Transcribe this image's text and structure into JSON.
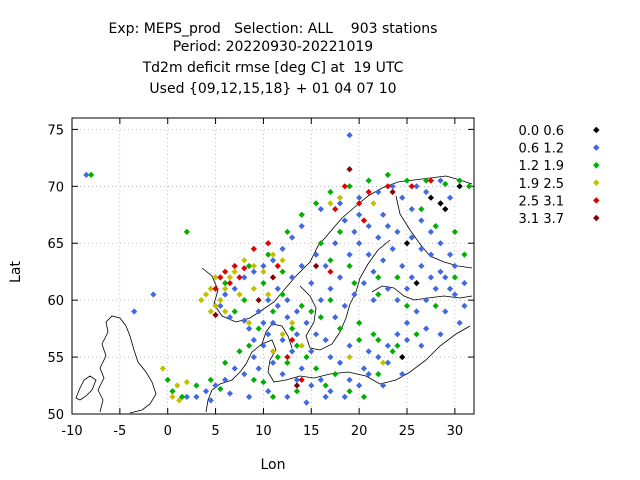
{
  "title_lines": [
    "Exp: MEPS_prod   Selection: ALL    903 stations",
    "Period: 20220930-20221019",
    "Td2m deficit rmse [deg C] at  19 UTC",
    "Used {09,12,15,18} + 01 04 07 10"
  ],
  "chart_data": {
    "type": "scatter",
    "title": "Exp: MEPS_prod   Selection: ALL    903 stations | Period: 20220930-20221019 | Td2m deficit rmse [deg C] at  19 UTC | Used {09,12,15,18} + 01 04 07 10",
    "xlabel": "Lon",
    "ylabel": "Lat",
    "xlim": [
      -10,
      32
    ],
    "ylim": [
      50,
      76
    ],
    "xticks": [
      -10,
      -5,
      0,
      5,
      10,
      15,
      20,
      25,
      30
    ],
    "yticks": [
      50,
      55,
      60,
      65,
      70,
      75
    ],
    "grid": true,
    "legend_position": "right",
    "legend": [
      {
        "label": "0.0 0.6",
        "color": "#000000"
      },
      {
        "label": "0.6 1.2",
        "color": "#4169e1"
      },
      {
        "label": "1.2 1.9",
        "color": "#00b000"
      },
      {
        "label": "1.9 2.5",
        "color": "#c0c000"
      },
      {
        "label": "2.5 3.1",
        "color": "#e00000"
      },
      {
        "label": "3.1 3.7",
        "color": "#8b0000"
      }
    ],
    "series": [
      {
        "name": "0.0 0.6",
        "points": [
          [
            27.5,
            69.0
          ],
          [
            29.0,
            68.0
          ],
          [
            26.0,
            61.5
          ],
          [
            24.5,
            55.0
          ],
          [
            25.0,
            65.0
          ],
          [
            30.5,
            70.0
          ],
          [
            28.5,
            68.5
          ]
        ]
      },
      {
        "name": "0.6 1.2",
        "points": [
          [
            -8.5,
            71.0
          ],
          [
            19.0,
            74.5
          ],
          [
            -3.5,
            59.0
          ],
          [
            -1.5,
            60.5
          ],
          [
            2.0,
            51.5
          ],
          [
            4.0,
            52.0
          ],
          [
            5.0,
            52.5
          ],
          [
            6.0,
            53.0
          ],
          [
            7.0,
            54.0
          ],
          [
            8.0,
            53.5
          ],
          [
            9.0,
            55.0
          ],
          [
            10.0,
            56.0
          ],
          [
            10.5,
            57.0
          ],
          [
            11.0,
            58.0
          ],
          [
            12.0,
            56.5
          ],
          [
            13.0,
            55.5
          ],
          [
            14.0,
            54.0
          ],
          [
            15.0,
            52.5
          ],
          [
            16.0,
            53.0
          ],
          [
            17.0,
            52.0
          ],
          [
            18.0,
            54.5
          ],
          [
            19.0,
            53.0
          ],
          [
            20.0,
            52.5
          ],
          [
            21.0,
            53.5
          ],
          [
            22.0,
            55.0
          ],
          [
            23.0,
            56.0
          ],
          [
            24.0,
            57.0
          ],
          [
            25.0,
            58.0
          ],
          [
            26.0,
            59.0
          ],
          [
            27.0,
            60.0
          ],
          [
            28.0,
            61.0
          ],
          [
            29.0,
            62.0
          ],
          [
            30.0,
            63.0
          ],
          [
            29.5,
            64.0
          ],
          [
            28.5,
            65.0
          ],
          [
            27.5,
            66.0
          ],
          [
            26.5,
            67.0
          ],
          [
            25.5,
            68.0
          ],
          [
            24.5,
            69.0
          ],
          [
            23.5,
            70.0
          ],
          [
            22.0,
            69.5
          ],
          [
            20.0,
            69.0
          ],
          [
            18.0,
            68.5
          ],
          [
            16.0,
            68.0
          ],
          [
            14.0,
            66.5
          ],
          [
            13.0,
            65.5
          ],
          [
            12.0,
            64.5
          ],
          [
            11.0,
            63.5
          ],
          [
            10.0,
            63.0
          ],
          [
            9.0,
            62.5
          ],
          [
            8.0,
            62.0
          ],
          [
            7.0,
            61.0
          ],
          [
            6.0,
            60.5
          ],
          [
            5.5,
            59.5
          ],
          [
            6.5,
            58.5
          ],
          [
            8.0,
            58.2
          ],
          [
            9.5,
            59.0
          ],
          [
            10.5,
            60.0
          ],
          [
            11.5,
            61.0
          ],
          [
            12.5,
            60.0
          ],
          [
            13.5,
            59.0
          ],
          [
            14.5,
            58.0
          ],
          [
            15.5,
            57.0
          ],
          [
            16.5,
            56.5
          ],
          [
            17.5,
            58.5
          ],
          [
            18.5,
            59.5
          ],
          [
            19.5,
            60.5
          ],
          [
            20.5,
            61.5
          ],
          [
            21.5,
            62.5
          ],
          [
            22.5,
            63.5
          ],
          [
            23.5,
            64.5
          ],
          [
            24.5,
            63.0
          ],
          [
            25.5,
            62.0
          ],
          [
            26.5,
            63.0
          ],
          [
            27.5,
            64.0
          ],
          [
            28.5,
            62.5
          ],
          [
            30.0,
            60.5
          ],
          [
            29.0,
            59.0
          ],
          [
            27.0,
            57.5
          ],
          [
            25.0,
            56.5
          ],
          [
            23.0,
            54.5
          ],
          [
            21.0,
            55.5
          ],
          [
            19.0,
            56.0
          ],
          [
            17.0,
            55.0
          ],
          [
            15.0,
            55.5
          ],
          [
            13.5,
            57.0
          ],
          [
            12.5,
            58.5
          ],
          [
            11.5,
            59.5
          ],
          [
            16.0,
            60.0
          ],
          [
            17.0,
            61.0
          ],
          [
            18.0,
            62.0
          ],
          [
            16.5,
            63.0
          ],
          [
            15.5,
            64.0
          ],
          [
            17.5,
            65.0
          ],
          [
            19.5,
            66.0
          ],
          [
            21.0,
            66.5
          ],
          [
            22.5,
            67.5
          ],
          [
            24.0,
            66.0
          ],
          [
            25.5,
            65.5
          ],
          [
            26.5,
            64.5
          ],
          [
            23.0,
            61.0
          ],
          [
            21.5,
            60.0
          ],
          [
            24.0,
            60.0
          ],
          [
            25.0,
            61.0
          ],
          [
            27.5,
            62.0
          ],
          [
            29.5,
            61.0
          ],
          [
            31.0,
            61.5
          ],
          [
            31.0,
            59.5
          ],
          [
            30.5,
            58.0
          ],
          [
            28.5,
            57.0
          ],
          [
            26.5,
            56.0
          ],
          [
            24.5,
            53.5
          ],
          [
            22.5,
            52.5
          ],
          [
            20.5,
            54.0
          ],
          [
            18.5,
            51.5
          ],
          [
            16.5,
            51.5
          ],
          [
            14.5,
            51.0
          ],
          [
            12.5,
            51.5
          ],
          [
            10.5,
            52.0
          ],
          [
            8.5,
            51.5
          ],
          [
            6.5,
            51.8
          ],
          [
            4.5,
            51.2
          ],
          [
            3.0,
            51.5
          ],
          [
            9.5,
            54.0
          ],
          [
            11.0,
            54.5
          ],
          [
            12.0,
            53.5
          ],
          [
            13.5,
            53.0
          ],
          [
            9.0,
            56.5
          ],
          [
            8.5,
            57.5
          ],
          [
            10.0,
            58.0
          ],
          [
            13.0,
            62.0
          ],
          [
            14.0,
            63.0
          ],
          [
            15.0,
            61.5
          ],
          [
            19.0,
            64.0
          ],
          [
            20.0,
            65.0
          ],
          [
            21.0,
            64.0
          ],
          [
            22.0,
            65.5
          ],
          [
            23.0,
            66.5
          ],
          [
            20.0,
            67.5
          ],
          [
            18.5,
            67.0
          ],
          [
            27.0,
            69.5
          ],
          [
            28.5,
            70.5
          ],
          [
            26.0,
            70.0
          ],
          [
            29.5,
            69.0
          ]
        ]
      },
      {
        "name": "1.2 1.9",
        "points": [
          [
            2.0,
            66.0
          ],
          [
            -8.0,
            71.0
          ],
          [
            0.0,
            53.0
          ],
          [
            0.5,
            52.0
          ],
          [
            1.5,
            51.5
          ],
          [
            3.0,
            52.5
          ],
          [
            4.5,
            53.0
          ],
          [
            5.5,
            52.2
          ],
          [
            6.0,
            54.5
          ],
          [
            7.5,
            55.5
          ],
          [
            8.5,
            56.0
          ],
          [
            9.0,
            53.0
          ],
          [
            10.0,
            52.8
          ],
          [
            11.5,
            55.0
          ],
          [
            12.5,
            54.5
          ],
          [
            13.5,
            56.0
          ],
          [
            14.5,
            55.0
          ],
          [
            15.5,
            54.0
          ],
          [
            16.5,
            52.5
          ],
          [
            17.5,
            53.5
          ],
          [
            19.0,
            52.0
          ],
          [
            20.5,
            51.5
          ],
          [
            22.0,
            53.5
          ],
          [
            23.5,
            55.5
          ],
          [
            21.5,
            57.0
          ],
          [
            20.0,
            58.0
          ],
          [
            18.0,
            57.5
          ],
          [
            16.0,
            58.5
          ],
          [
            14.0,
            59.5
          ],
          [
            12.0,
            60.5
          ],
          [
            10.0,
            61.5
          ],
          [
            8.0,
            60.0
          ],
          [
            7.0,
            59.0
          ],
          [
            6.0,
            61.5
          ],
          [
            8.5,
            63.0
          ],
          [
            10.5,
            64.0
          ],
          [
            12.5,
            66.0
          ],
          [
            14.0,
            67.5
          ],
          [
            15.5,
            68.5
          ],
          [
            17.0,
            69.5
          ],
          [
            19.0,
            70.0
          ],
          [
            21.0,
            70.5
          ],
          [
            23.0,
            71.0
          ],
          [
            25.0,
            70.5
          ],
          [
            27.0,
            70.5
          ],
          [
            29.0,
            70.2
          ],
          [
            30.5,
            70.5
          ],
          [
            31.5,
            70.0
          ],
          [
            30.0,
            66.0
          ],
          [
            31.0,
            64.0
          ],
          [
            30.0,
            62.0
          ],
          [
            28.0,
            59.5
          ],
          [
            26.0,
            57.0
          ],
          [
            24.0,
            56.0
          ],
          [
            22.0,
            56.5
          ],
          [
            20.0,
            56.5
          ],
          [
            24.0,
            62.0
          ],
          [
            22.0,
            62.0
          ],
          [
            19.0,
            63.0
          ],
          [
            17.0,
            63.5
          ],
          [
            16.0,
            65.0
          ],
          [
            18.0,
            66.0
          ],
          [
            22.0,
            60.5
          ],
          [
            25.0,
            59.5
          ],
          [
            12.0,
            62.5
          ],
          [
            11.0,
            59.0
          ],
          [
            13.0,
            57.5
          ],
          [
            9.5,
            57.5
          ],
          [
            15.0,
            59.0
          ],
          [
            17.0,
            60.0
          ],
          [
            19.5,
            61.5
          ],
          [
            26.5,
            68.0
          ],
          [
            28.0,
            66.5
          ],
          [
            13.5,
            52.0
          ],
          [
            11.0,
            51.5
          ]
        ]
      },
      {
        "name": "1.9 2.5",
        "points": [
          [
            -0.5,
            54.0
          ],
          [
            0.5,
            51.5
          ],
          [
            1.0,
            52.5
          ],
          [
            1.2,
            51.2
          ],
          [
            2.0,
            52.8
          ],
          [
            4.0,
            60.5
          ],
          [
            4.5,
            61.0
          ],
          [
            5.0,
            59.5
          ],
          [
            5.5,
            60.0
          ],
          [
            6.0,
            61.0
          ],
          [
            6.5,
            62.0
          ],
          [
            7.0,
            62.5
          ],
          [
            8.0,
            63.5
          ],
          [
            9.0,
            63.0
          ],
          [
            10.0,
            62.5
          ],
          [
            11.0,
            64.0
          ],
          [
            12.0,
            63.5
          ],
          [
            5.0,
            62.0
          ],
          [
            4.5,
            59.0
          ],
          [
            3.5,
            60.0
          ],
          [
            6.0,
            59.0
          ],
          [
            7.5,
            60.5
          ],
          [
            9.0,
            61.0
          ],
          [
            10.5,
            60.5
          ],
          [
            11.0,
            55.5
          ],
          [
            12.0,
            57.0
          ],
          [
            14.0,
            56.0
          ],
          [
            13.0,
            58.0
          ],
          [
            17.0,
            68.5
          ],
          [
            18.0,
            69.0
          ],
          [
            21.5,
            68.5
          ],
          [
            8.5,
            58.0
          ],
          [
            22.5,
            54.5
          ],
          [
            19.0,
            55.0
          ]
        ]
      },
      {
        "name": "2.5 3.1",
        "points": [
          [
            5.5,
            62.0
          ],
          [
            6.0,
            62.5
          ],
          [
            6.5,
            61.5
          ],
          [
            7.0,
            63.0
          ],
          [
            5.0,
            61.0
          ],
          [
            7.5,
            62.0
          ],
          [
            8.0,
            62.8
          ],
          [
            9.0,
            64.5
          ],
          [
            10.5,
            65.0
          ],
          [
            11.5,
            63.0
          ],
          [
            17.5,
            68.0
          ],
          [
            20.0,
            68.5
          ],
          [
            21.0,
            69.5
          ],
          [
            18.5,
            70.0
          ],
          [
            25.5,
            70.0
          ],
          [
            27.5,
            70.5
          ],
          [
            20.5,
            67.0
          ],
          [
            17.0,
            62.5
          ],
          [
            13.0,
            56.5
          ],
          [
            14.0,
            53.0
          ],
          [
            12.5,
            55.0
          ],
          [
            23.0,
            70.0
          ]
        ]
      },
      {
        "name": "3.1 3.7",
        "points": [
          [
            19.0,
            71.5
          ],
          [
            9.5,
            60.0
          ],
          [
            5.0,
            58.7
          ],
          [
            23.5,
            69.5
          ],
          [
            13.5,
            52.5
          ],
          [
            15.5,
            63.0
          ],
          [
            11.0,
            62.0
          ]
        ]
      }
    ]
  }
}
